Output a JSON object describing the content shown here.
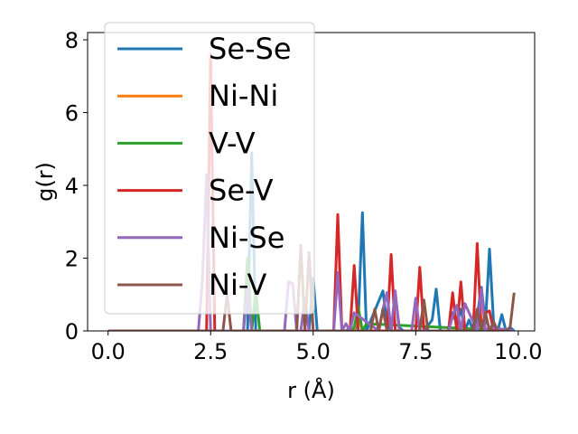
{
  "chart_data": {
    "type": "line",
    "xlabel": "r (Å)",
    "ylabel": "g(r)",
    "xlim": [
      -0.5,
      10.4
    ],
    "ylim": [
      0,
      8.2
    ],
    "xticks": [
      "0.0",
      "2.5",
      "5.0",
      "7.5",
      "10.0"
    ],
    "yticks": [
      "0",
      "2",
      "4",
      "6",
      "8"
    ],
    "legend_placement": "upper-left",
    "grid": false,
    "series": [
      {
        "name": "Se-Se",
        "color": "#1f77b4",
        "x": [
          0,
          2.3,
          2.4,
          2.5,
          2.6,
          2.7,
          3.3,
          3.4,
          3.5,
          3.6,
          3.7,
          4.9,
          5.0,
          5.1,
          5.8,
          5.9,
          6.0,
          6.1,
          6.2,
          6.3,
          6.7,
          6.8,
          6.9,
          7.0,
          7.1,
          7.2,
          7.7,
          7.8,
          7.9,
          8.0,
          8.1,
          8.3,
          8.4,
          8.5,
          8.6,
          8.7,
          8.8,
          8.9,
          9.0,
          9.1,
          9.2,
          9.3,
          9.4,
          9.5,
          9.6,
          9.7,
          9.8,
          9.9
        ],
        "y": [
          0,
          0,
          0,
          0,
          0,
          0,
          0,
          0,
          4.9,
          0,
          0,
          0,
          1.45,
          0,
          0,
          0.1,
          0,
          0.3,
          3.25,
          0,
          1.1,
          0.2,
          0,
          1.0,
          0.1,
          0,
          0,
          0.15,
          0.3,
          1.15,
          0,
          0,
          0.5,
          0.2,
          0.6,
          0,
          0.3,
          0,
          0.4,
          1.2,
          0.2,
          2.25,
          0.2,
          0,
          0.45,
          0,
          0.1,
          0
        ]
      },
      {
        "name": "Ni-Ni",
        "color": "#ff7f0e",
        "x": [
          0,
          5.9,
          6.0,
          6.1,
          6.2,
          9.9
        ],
        "y": [
          0,
          0,
          0.05,
          0.4,
          0,
          0
        ]
      },
      {
        "name": "V-V",
        "color": "#2ca02c",
        "x": [
          0,
          3.3,
          3.4,
          3.5,
          3.6,
          3.7,
          5.9,
          6.0,
          6.1,
          6.2,
          6.3,
          9.9
        ],
        "y": [
          0,
          0,
          2.0,
          0,
          1.1,
          0,
          0,
          0.1,
          0.65,
          0,
          0.2,
          0
        ]
      },
      {
        "name": "Se-V",
        "color": "#d62728",
        "x": [
          0,
          2.3,
          2.4,
          2.5,
          2.6,
          2.7,
          5.5,
          5.6,
          5.7,
          5.8,
          5.9,
          6.0,
          6.1,
          6.8,
          6.9,
          7.0,
          7.1,
          7.5,
          7.6,
          7.7,
          8.3,
          8.4,
          8.5,
          8.6,
          8.7,
          8.9,
          9.0,
          9.1,
          9.2,
          9.3,
          9.4,
          9.9
        ],
        "y": [
          0,
          0,
          0,
          7.6,
          0,
          0,
          0,
          3.2,
          0,
          0,
          0,
          1.8,
          0,
          0,
          2.1,
          0,
          0,
          0,
          1.75,
          0,
          0,
          1.05,
          0,
          1.35,
          0,
          0,
          2.4,
          0,
          0.5,
          0.55,
          0,
          0
        ]
      },
      {
        "name": "Ni-Se",
        "color": "#9467bd",
        "x": [
          0,
          2.2,
          2.3,
          2.4,
          2.5,
          2.6,
          3.2,
          3.3,
          3.4,
          3.5,
          3.6,
          4.3,
          4.4,
          4.5,
          4.6,
          4.7,
          4.8,
          4.9,
          5.5,
          5.6,
          5.7,
          5.8,
          5.9,
          6.0,
          6.6,
          6.7,
          6.8,
          6.9,
          7.0,
          7.1,
          7.4,
          7.5,
          7.6,
          8.3,
          8.4,
          8.5,
          8.6,
          8.7,
          9.0,
          9.1,
          9.2,
          9.3,
          9.9
        ],
        "y": [
          0,
          0,
          1.4,
          4.3,
          0,
          0,
          0,
          0,
          1.2,
          0,
          0,
          0,
          1.35,
          1.3,
          0,
          0,
          0.9,
          0,
          0,
          1.6,
          0,
          0.2,
          0,
          0.5,
          0,
          0.6,
          1.05,
          0,
          1.1,
          0,
          0,
          0.9,
          0,
          0,
          0.4,
          0.7,
          0,
          0.75,
          0,
          1.15,
          0,
          0.1,
          0
        ]
      },
      {
        "name": "Ni-V",
        "color": "#8c564b",
        "x": [
          0,
          2.8,
          2.9,
          3.0,
          4.5,
          4.6,
          4.7,
          4.8,
          4.9,
          5.0,
          6.4,
          6.5,
          6.6,
          6.7,
          6.8,
          7.6,
          7.7,
          7.8,
          8.9,
          9.0,
          9.1,
          9.2,
          9.3,
          9.4,
          9.5,
          9.6,
          9.7,
          9.8,
          9.9
        ],
        "y": [
          0,
          0,
          1.0,
          0,
          0,
          0,
          2.35,
          0,
          2.15,
          0,
          0,
          0.6,
          0,
          0.6,
          0,
          0,
          0.85,
          0,
          0,
          0.6,
          0,
          0.5,
          0,
          0.25,
          0,
          0,
          0,
          0.1,
          1.05
        ]
      }
    ]
  }
}
